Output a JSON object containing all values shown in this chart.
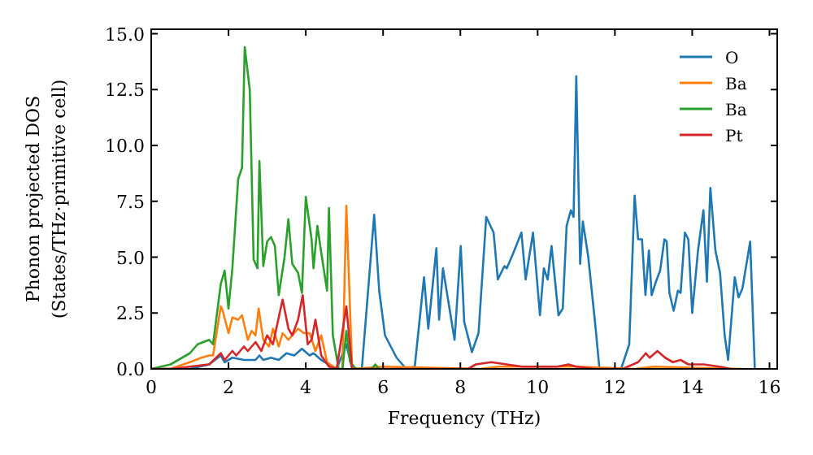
{
  "chart_data": {
    "type": "line",
    "xlabel": "Frequency (THz)",
    "ylabel": "Phonon projected DOS\n(States/THz·primitive cell)",
    "xlim": [
      0,
      16.2
    ],
    "ylim": [
      0,
      15.2
    ],
    "xticks": [
      0,
      2,
      4,
      6,
      8,
      10,
      12,
      14,
      16
    ],
    "yticks": [
      {
        "value": 0,
        "label": "0.0"
      },
      {
        "value": 2.5,
        "label": "2.5"
      },
      {
        "value": 5,
        "label": "5.0"
      },
      {
        "value": 7.5,
        "label": "7.5"
      },
      {
        "value": 10,
        "label": "10.0"
      },
      {
        "value": 12.5,
        "label": "12.5"
      },
      {
        "value": 15,
        "label": "15.0"
      }
    ],
    "grid": false,
    "legend": "top right",
    "marker": "none",
    "line_style": "solid",
    "series": [
      {
        "name": "O",
        "color": "#1f77b4",
        "x": [
          0,
          1.0,
          1.5,
          1.8,
          1.9,
          2.1,
          2.4,
          2.7,
          2.8,
          2.9,
          3.1,
          3.3,
          3.5,
          3.7,
          3.9,
          4.1,
          4.2,
          4.4,
          4.6,
          4.8,
          5.05,
          5.2,
          5.45,
          5.77,
          5.9,
          6.05,
          6.2,
          6.35,
          6.6,
          6.82,
          7.06,
          7.17,
          7.38,
          7.45,
          7.55,
          7.85,
          8.01,
          8.1,
          8.3,
          8.47,
          8.67,
          8.86,
          8.97,
          9.14,
          9.2,
          9.35,
          9.58,
          9.69,
          9.88,
          10.06,
          10.16,
          10.26,
          10.36,
          10.54,
          10.65,
          10.75,
          10.86,
          10.93,
          11.0,
          11.1,
          11.17,
          11.31,
          11.49,
          11.6,
          12.16,
          12.37,
          12.51,
          12.6,
          12.7,
          12.79,
          12.88,
          12.95,
          13.06,
          13.17,
          13.28,
          13.34,
          13.41,
          13.52,
          13.63,
          13.7,
          13.81,
          13.9,
          14.0,
          14.15,
          14.29,
          14.38,
          14.47,
          14.6,
          14.72,
          14.84,
          14.93,
          15.1,
          15.2,
          15.3,
          15.5,
          15.62
        ],
        "values": [
          0,
          0,
          0.2,
          0.6,
          0.3,
          0.5,
          0.4,
          0.4,
          0.6,
          0.4,
          0.5,
          0.4,
          0.7,
          0.6,
          0.9,
          0.6,
          0.7,
          0.4,
          0.2,
          0,
          1.1,
          0,
          0,
          6.9,
          3.5,
          1.5,
          1.0,
          0.5,
          0,
          0.1,
          4.1,
          1.8,
          5.4,
          2.2,
          4.5,
          1.3,
          5.5,
          2.1,
          0.75,
          1.6,
          6.8,
          6.1,
          4.0,
          4.6,
          4.5,
          5.1,
          6.1,
          4.0,
          6.1,
          2.4,
          4.5,
          4.0,
          5.5,
          2.4,
          2.7,
          6.4,
          7.1,
          6.8,
          13.1,
          4.7,
          6.6,
          5.0,
          2.0,
          0,
          0,
          1.1,
          7.75,
          5.8,
          5.8,
          3.3,
          5.3,
          3.3,
          3.9,
          4.4,
          5.8,
          5.7,
          3.4,
          2.6,
          3.5,
          3.4,
          6.1,
          5.8,
          2.5,
          5.3,
          7.1,
          3.9,
          8.1,
          5.3,
          4.3,
          1.5,
          0.4,
          4.1,
          3.2,
          3.6,
          5.7,
          0
        ]
      },
      {
        "name": "Ba",
        "color": "#ff7f0e",
        "x": [
          0,
          0.5,
          1.0,
          1.3,
          1.5,
          1.6,
          1.8,
          1.85,
          2.0,
          2.1,
          2.25,
          2.35,
          2.5,
          2.6,
          2.7,
          2.78,
          2.9,
          3.05,
          3.15,
          3.3,
          3.4,
          3.55,
          3.8,
          3.95,
          4.1,
          4.25,
          4.4,
          4.55,
          4.8,
          4.95,
          5.05,
          5.2,
          6.0,
          8.5,
          9.0,
          11.0,
          12.5,
          13.0,
          15.3
        ],
        "values": [
          0,
          0,
          0.3,
          0.5,
          0.6,
          0.6,
          2.8,
          2.6,
          1.6,
          2.3,
          2.2,
          2.4,
          1.3,
          1.7,
          1.5,
          2.7,
          1.3,
          1.0,
          1.8,
          1.0,
          1.6,
          1.3,
          1.8,
          1.6,
          1.6,
          0.8,
          1.5,
          0.3,
          0,
          0,
          7.3,
          0,
          0.1,
          0,
          0.1,
          0.1,
          0,
          0.1,
          0
        ]
      },
      {
        "name": "Ba",
        "color": "#2ca02c",
        "x": [
          0,
          0.5,
          1.0,
          1.2,
          1.5,
          1.6,
          1.8,
          1.9,
          2.0,
          2.1,
          2.25,
          2.35,
          2.42,
          2.55,
          2.65,
          2.75,
          2.8,
          2.9,
          3.0,
          3.1,
          3.2,
          3.3,
          3.45,
          3.55,
          3.65,
          3.8,
          3.9,
          4.0,
          4.15,
          4.2,
          4.3,
          4.4,
          4.55,
          4.6,
          4.7,
          4.85,
          4.95,
          5.05,
          5.15,
          5.3,
          5.7,
          5.8,
          5.9
        ],
        "values": [
          0,
          0.2,
          0.7,
          1.1,
          1.3,
          1.1,
          3.8,
          4.4,
          2.7,
          4.5,
          8.5,
          9.0,
          14.4,
          12.5,
          4.9,
          4.5,
          9.3,
          4.6,
          5.7,
          5.9,
          5.5,
          3.3,
          5.0,
          6.7,
          4.7,
          4.3,
          3.4,
          7.7,
          5.8,
          4.5,
          6.4,
          5.2,
          3.5,
          7.2,
          1.5,
          0,
          0,
          1.7,
          0.3,
          0,
          0,
          0.2,
          0
        ]
      },
      {
        "name": "Pt",
        "color": "#d62728",
        "x": [
          0,
          0.5,
          1.0,
          1.5,
          1.8,
          1.9,
          2.1,
          2.2,
          2.4,
          2.5,
          2.7,
          2.85,
          3.0,
          3.15,
          3.4,
          3.55,
          3.65,
          3.8,
          3.92,
          4.05,
          4.15,
          4.25,
          4.4,
          4.6,
          4.8,
          5.05,
          5.2,
          8.2,
          8.4,
          8.8,
          9.2,
          9.6,
          10.5,
          10.8,
          11.0,
          11.5,
          12.2,
          12.6,
          12.8,
          12.9,
          13.1,
          13.3,
          13.5,
          13.7,
          13.9,
          14.3,
          14.7,
          15.0
        ],
        "values": [
          0,
          0,
          0.1,
          0.2,
          0.7,
          0.4,
          0.8,
          0.6,
          1.0,
          0.8,
          1.2,
          0.8,
          1.5,
          1.1,
          3.1,
          1.8,
          1.5,
          2.2,
          3.3,
          1.1,
          1.3,
          2.2,
          0.6,
          0.1,
          0,
          2.8,
          0,
          0,
          0.2,
          0.3,
          0.2,
          0.1,
          0.1,
          0.2,
          0.1,
          0,
          0,
          0.3,
          0.7,
          0.5,
          0.8,
          0.5,
          0.3,
          0.4,
          0.2,
          0.2,
          0.1,
          0
        ]
      }
    ]
  }
}
